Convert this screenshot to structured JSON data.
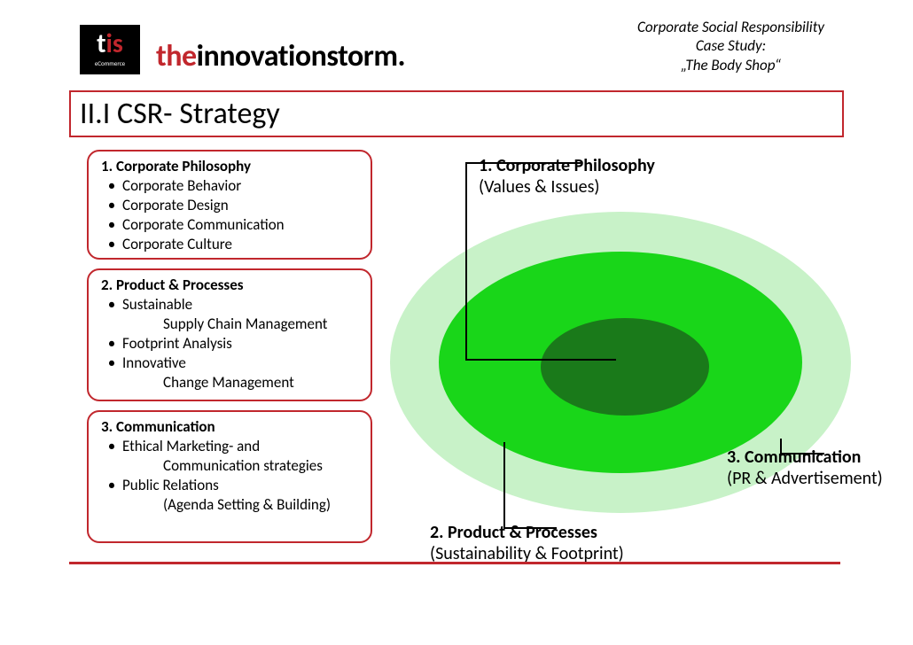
{
  "logo": {
    "t": "t",
    "is": "is",
    "sub": "eCommerce"
  },
  "brand": {
    "the": "the",
    "rest": "innovationstorm."
  },
  "header_right": {
    "l1": "Corporate Social Responsibility",
    "l2": "Case Study:",
    "l3": "„The Body Shop“"
  },
  "title": "II.I CSR- Strategy",
  "boxes": {
    "b1": {
      "head": "1.   Corporate Philosophy",
      "items": [
        "Corporate Behavior",
        "Corporate Design",
        "Corporate Communication",
        "Corporate Culture"
      ]
    },
    "b2": {
      "head": "2. Product & Processes",
      "items": [
        "Sustainable",
        "Footprint Analysis",
        "Innovative"
      ],
      "indents": {
        "0": "Supply Chain Management",
        "2": "Change Management"
      }
    },
    "b3": {
      "head": "3. Communication",
      "items": [
        "Ethical Marketing- and",
        "Public Relations"
      ],
      "indents": {
        "0": "Communication strategies",
        "1": "(Agenda Setting & Building)"
      }
    }
  },
  "diagram": {
    "ring3_color": "#c8f2c8",
    "ring2_color": "#19d619",
    "ring1_color": "#1a7a1a"
  },
  "callouts": {
    "c1": {
      "bold": "1. Corporate Philosophy",
      "sub": "(Values & Issues)"
    },
    "c2": {
      "bold": "2. Product & Processes",
      "sub": "(Sustainability & Footprint)"
    },
    "c3": {
      "bold": "3. Communication",
      "sub": "(PR & Advertisement)"
    }
  },
  "colors": {
    "accent": "#c1272d",
    "text": "#000000",
    "bg": "#ffffff"
  }
}
